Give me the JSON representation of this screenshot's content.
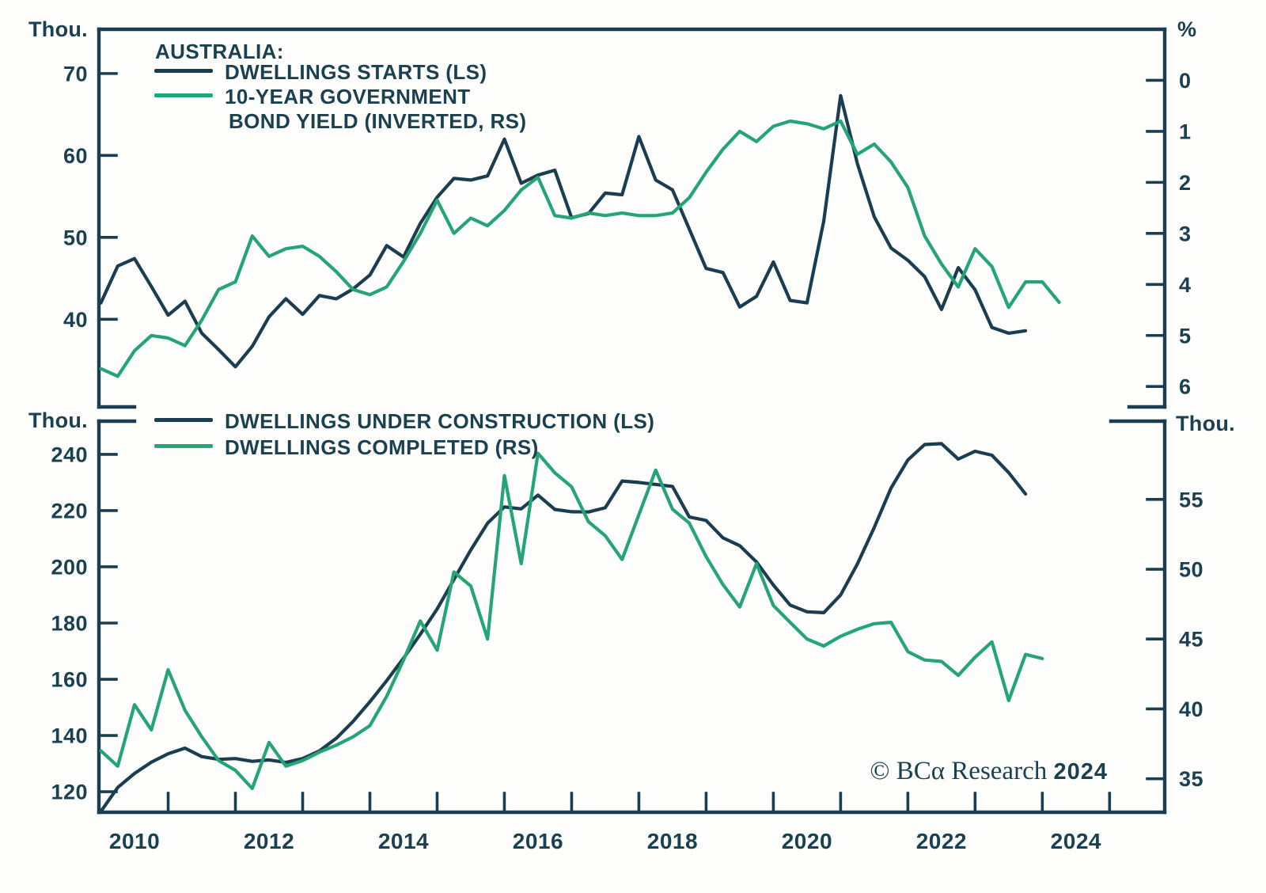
{
  "units": {
    "top_left": "Thou.",
    "top_right": "%",
    "bottom_left": "Thou.",
    "bottom_right": "Thou."
  },
  "legend_top": {
    "title": "AUSTRALIA:",
    "series2_line1": "10-YEAR GOVERNMENT",
    "series2_line2": "BOND YIELD (INVERTED, RS)"
  },
  "footer": {
    "brand": "© BCα Research",
    "year": "2024"
  },
  "colors": {
    "dark": "#1a3e4f",
    "green": "#24a477",
    "text": "#1b4151",
    "background": "#fdfdfb"
  },
  "chart_data": [
    {
      "type": "line",
      "panel": "top",
      "title": "AUSTRALIA: DWELLINGS STARTS vs 10-YEAR GOVERNMENT BOND YIELD (INVERTED)",
      "x_start": 2010.0,
      "x_step_years": 0.25,
      "x_axis": {
        "range": [
          2009.97,
          2025.82
        ],
        "year_ticks": [],
        "labels": []
      },
      "left_axis": {
        "unit": "Thou.",
        "ticks": [
          70,
          60,
          50,
          40
        ],
        "range": [
          29.3,
          75.4
        ]
      },
      "right_axis": {
        "unit": "%",
        "ticks": [
          0,
          1,
          2,
          3,
          4,
          5,
          6
        ],
        "inverted": true,
        "range": [
          6.4,
          -1.0
        ]
      },
      "grid": false,
      "legend_position": "top-left-inside",
      "series": [
        {
          "name": "DWELLINGS STARTS (LS)",
          "axis": "left",
          "color_key": "dark",
          "values": [
            42.0,
            46.5,
            47.4,
            44.0,
            40.5,
            42.2,
            38.3,
            36.3,
            34.2,
            36.7,
            40.3,
            42.5,
            40.6,
            42.9,
            42.5,
            43.7,
            45.4,
            49.0,
            47.6,
            51.7,
            54.9,
            57.2,
            57.0,
            57.5,
            62.0,
            56.6,
            57.6,
            58.2,
            52.4,
            52.9,
            55.4,
            55.2,
            62.3,
            57.0,
            55.8,
            51.0,
            46.2,
            45.7,
            41.5,
            42.8,
            47.0,
            42.3,
            42.0,
            52.0,
            67.3,
            59.0,
            52.5,
            48.7,
            47.2,
            45.2,
            41.2,
            46.3,
            43.6,
            39.0,
            38.3,
            38.6
          ]
        },
        {
          "name": "10-YEAR GOVERNMENT BOND YIELD (INVERTED, RS)",
          "axis": "right",
          "color_key": "green",
          "values": [
            5.65,
            5.8,
            5.3,
            5.0,
            5.05,
            5.2,
            4.7,
            4.1,
            3.95,
            3.05,
            3.45,
            3.3,
            3.25,
            3.45,
            3.75,
            4.1,
            4.2,
            4.05,
            3.55,
            3.0,
            2.35,
            3.0,
            2.7,
            2.85,
            2.55,
            2.15,
            1.9,
            2.65,
            2.7,
            2.6,
            2.65,
            2.6,
            2.65,
            2.65,
            2.6,
            2.3,
            1.8,
            1.35,
            1.0,
            1.2,
            0.9,
            0.8,
            0.85,
            0.95,
            0.8,
            1.45,
            1.25,
            1.6,
            2.1,
            3.05,
            3.6,
            4.05,
            3.3,
            3.65,
            4.45,
            3.95,
            3.95,
            4.35
          ]
        }
      ]
    },
    {
      "type": "line",
      "panel": "bottom",
      "title": "AUSTRALIA: DWELLINGS UNDER CONSTRUCTION vs DWELLINGS COMPLETED",
      "x_start": 2010.0,
      "x_step_years": 0.25,
      "x_axis": {
        "range": [
          2009.97,
          2025.82
        ],
        "year_ticks": [
          2011,
          2012,
          2013,
          2014,
          2015,
          2016,
          2017,
          2018,
          2019,
          2020,
          2021,
          2022,
          2023,
          2024,
          2025
        ],
        "labels": [
          {
            "text": "2010",
            "t": 2010.5
          },
          {
            "text": "2012",
            "t": 2012.5
          },
          {
            "text": "2014",
            "t": 2014.5
          },
          {
            "text": "2016",
            "t": 2016.5
          },
          {
            "text": "2018",
            "t": 2018.5
          },
          {
            "text": "2020",
            "t": 2020.5
          },
          {
            "text": "2022",
            "t": 2022.5
          },
          {
            "text": "2024",
            "t": 2024.5
          }
        ]
      },
      "left_axis": {
        "unit": "Thou.",
        "ticks": [
          240,
          220,
          200,
          180,
          160,
          140,
          120
        ],
        "range": [
          112.7,
          251.8
        ]
      },
      "right_axis": {
        "unit": "Thou.",
        "ticks": [
          55,
          50,
          45,
          40,
          35
        ],
        "inverted": false,
        "range": [
          32.6,
          60.6
        ]
      },
      "grid": false,
      "legend_position": "top-left-inside",
      "series": [
        {
          "name": "DWELLINGS UNDER CONSTRUCTION (LS)",
          "axis": "left",
          "color_key": "dark",
          "values": [
            113.0,
            121.5,
            126.5,
            130.5,
            133.5,
            135.5,
            132.5,
            131.5,
            131.8,
            130.8,
            131.3,
            130.4,
            131.8,
            134.5,
            139.0,
            145.0,
            152.0,
            159.5,
            167.5,
            176.0,
            185.0,
            195.5,
            206.0,
            215.5,
            221.3,
            220.6,
            225.5,
            220.4,
            219.6,
            219.5,
            221.0,
            230.5,
            230.0,
            229.3,
            228.6,
            217.7,
            216.5,
            210.3,
            207.5,
            201.7,
            193.5,
            186.4,
            184.0,
            183.7,
            190.0,
            201.0,
            214.0,
            228.0,
            238.0,
            243.5,
            243.8,
            238.3,
            241.1,
            239.7,
            233.5,
            225.9
          ]
        },
        {
          "name": "DWELLINGS COMPLETED (RS)",
          "axis": "right",
          "color_key": "green",
          "values": [
            37.0,
            35.9,
            40.3,
            38.5,
            42.8,
            39.9,
            38.0,
            36.3,
            35.6,
            34.3,
            37.6,
            35.9,
            36.3,
            36.9,
            37.4,
            38.0,
            38.8,
            40.9,
            43.5,
            46.3,
            44.2,
            49.8,
            48.8,
            45.0,
            56.7,
            50.4,
            58.3,
            56.9,
            55.9,
            53.4,
            52.4,
            50.7,
            53.9,
            57.1,
            54.3,
            53.3,
            50.9,
            48.9,
            47.3,
            50.4,
            47.4,
            46.2,
            45.0,
            44.5,
            45.2,
            45.7,
            46.1,
            46.2,
            44.1,
            43.5,
            43.4,
            42.4,
            43.7,
            44.8,
            40.6,
            43.9,
            43.6
          ]
        }
      ]
    }
  ]
}
